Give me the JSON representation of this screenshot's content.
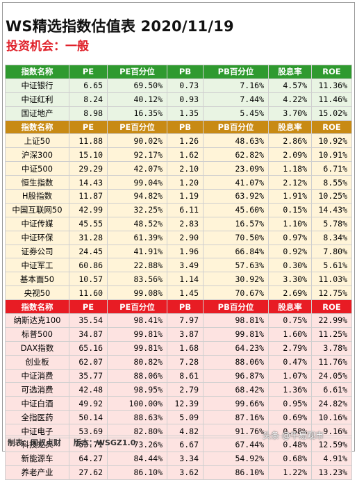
{
  "title": "WS精选指数估值表 2020/11/19",
  "subtitle": "投资机会：一般",
  "header": [
    "指数名称",
    "PE",
    "PE百分位",
    "PB",
    "PB百分位",
    "股息率",
    "ROE"
  ],
  "groups": [
    {
      "style": "green",
      "rows": [
        [
          "中证银行",
          "6.65",
          "69.50%",
          "0.73",
          "7.16%",
          "4.57%",
          "11.36%"
        ],
        [
          "中证红利",
          "8.24",
          "40.12%",
          "0.93",
          "7.44%",
          "4.22%",
          "11.46%"
        ],
        [
          "国证地产",
          "8.98",
          "16.35%",
          "1.35",
          "5.45%",
          "3.70%",
          "15.02%"
        ]
      ]
    },
    {
      "style": "gold",
      "rows": [
        [
          "上证50",
          "11.88",
          "90.02%",
          "1.26",
          "48.63%",
          "2.86%",
          "10.92%"
        ],
        [
          "沪深300",
          "15.10",
          "92.17%",
          "1.62",
          "62.82%",
          "2.09%",
          "10.91%"
        ],
        [
          "中证500",
          "29.29",
          "42.07%",
          "2.10",
          "23.09%",
          "1.18%",
          "6.71%"
        ],
        [
          "恒生指数",
          "14.43",
          "99.04%",
          "1.20",
          "41.07%",
          "2.12%",
          "8.55%"
        ],
        [
          "H股指数",
          "11.87",
          "94.82%",
          "1.19",
          "63.92%",
          "1.91%",
          "10.25%"
        ],
        [
          "中国互联网50",
          "42.99",
          "32.25%",
          "6.11",
          "45.60%",
          "0.15%",
          "14.43%"
        ],
        [
          "中证传媒",
          "45.55",
          "48.52%",
          "2.83",
          "16.57%",
          "1.10%",
          "5.78%"
        ],
        [
          "中证环保",
          "31.28",
          "61.39%",
          "2.90",
          "70.50%",
          "0.97%",
          "8.34%"
        ],
        [
          "证券公司",
          "24.45",
          "41.91%",
          "1.96",
          "66.84%",
          "0.92%",
          "7.80%"
        ],
        [
          "中证军工",
          "60.86",
          "22.88%",
          "3.49",
          "57.63%",
          "0.30%",
          "5.61%"
        ],
        [
          "基本面50",
          "10.57",
          "83.56%",
          "1.14",
          "30.92%",
          "3.30%",
          "11.03%"
        ],
        [
          "央视50",
          "11.60",
          "99.08%",
          "1.45",
          "70.67%",
          "2.69%",
          "12.75%"
        ]
      ]
    },
    {
      "style": "red",
      "rows": [
        [
          "纳斯达克100",
          "35.54",
          "98.41%",
          "7.97",
          "98.81%",
          "0.75%",
          "22.99%"
        ],
        [
          "标普500",
          "34.87",
          "99.81%",
          "3.87",
          "99.81%",
          "1.60%",
          "11.25%"
        ],
        [
          "DAX指数",
          "65.16",
          "99.81%",
          "1.68",
          "64.23%",
          "2.79%",
          "3.78%"
        ],
        [
          "创业板",
          "62.07",
          "80.82%",
          "7.28",
          "88.06%",
          "0.47%",
          "11.76%"
        ],
        [
          "中证消费",
          "35.77",
          "88.06%",
          "8.61",
          "96.87%",
          "1.07%",
          "24.05%"
        ],
        [
          "可选消费",
          "42.48",
          "98.95%",
          "2.79",
          "68.42%",
          "1.36%",
          "6.61%"
        ],
        [
          "中证白酒",
          "49.92",
          "100.00%",
          "12.39",
          "99.66%",
          "0.95%",
          "24.82%"
        ],
        [
          "全指医药",
          "50.14",
          "88.63%",
          "5.09",
          "87.16%",
          "0.69%",
          "10.16%"
        ],
        [
          "中证电子",
          "53.69",
          "82.80%",
          "4.82",
          "91.76%",
          "0.58%",
          "9.16%"
        ],
        [
          "科技龙头",
          "53.71",
          "73.26%",
          "6.67",
          "67.44%",
          "0.48%",
          "12.59%"
        ],
        [
          "新能源车",
          "64.27",
          "84.44%",
          "3.34",
          "54.92%",
          "0.68%",
          "4.91%"
        ],
        [
          "养老产业",
          "27.62",
          "86.10%",
          "3.62",
          "86.10%",
          "1.22%",
          "13.23%"
        ]
      ]
    }
  ],
  "footer": {
    "maker": "制表：网叔点财",
    "version": "版本：WSGZ1.0"
  },
  "watermark": "头条 @牛易观市",
  "colors": {
    "green_header": "#2f9a2f",
    "gold_header": "#c88a14",
    "red_header": "#e81c24",
    "subtitle": "#e0222b"
  }
}
